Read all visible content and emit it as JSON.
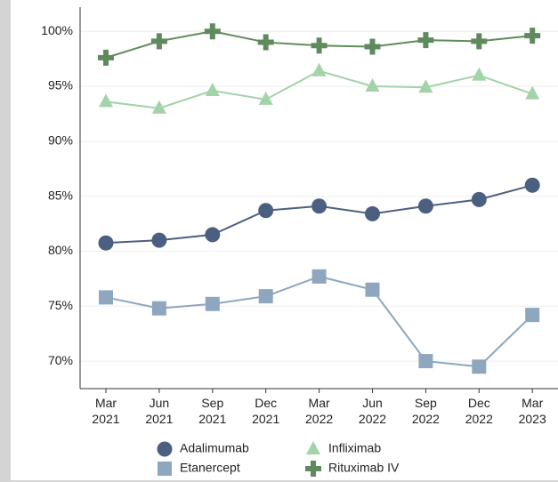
{
  "chart_data": {
    "type": "line",
    "categories": [
      "Mar\n2021",
      "Jun\n2021",
      "Sep\n2021",
      "Dec\n2021",
      "Mar\n2022",
      "Jun\n2022",
      "Sep\n2022",
      "Dec\n2022",
      "Mar\n2023"
    ],
    "series": [
      {
        "name": "Adalimumab",
        "color": "#4b6080",
        "marker": "circle",
        "values": [
          80.75,
          81.0,
          81.5,
          83.7,
          84.1,
          83.4,
          84.1,
          84.7,
          86.0
        ]
      },
      {
        "name": "Infliximab",
        "color": "#a3d3a8",
        "marker": "triangle",
        "values": [
          93.6,
          93.0,
          94.6,
          93.8,
          96.4,
          95.0,
          94.9,
          96.0,
          94.3
        ]
      },
      {
        "name": "Etanercept",
        "color": "#8ea6be",
        "marker": "square",
        "values": [
          75.8,
          74.8,
          75.2,
          75.9,
          77.7,
          76.5,
          70.0,
          69.5,
          74.2
        ]
      },
      {
        "name": "Rituximab IV",
        "color": "#5f8b5c",
        "marker": "plus",
        "values": [
          97.6,
          99.1,
          100.0,
          99.0,
          98.7,
          98.6,
          99.2,
          99.1,
          99.6
        ]
      }
    ],
    "ylim": [
      67.5,
      102.2
    ],
    "yticks": [
      {
        "value": 70,
        "label": "70%"
      },
      {
        "value": 75,
        "label": "75%"
      },
      {
        "value": 80,
        "label": "80%"
      },
      {
        "value": 85,
        "label": "85%"
      },
      {
        "value": 90,
        "label": "90%"
      },
      {
        "value": 95,
        "label": "95%"
      },
      {
        "value": 100,
        "label": "100%"
      }
    ],
    "grid": true
  }
}
